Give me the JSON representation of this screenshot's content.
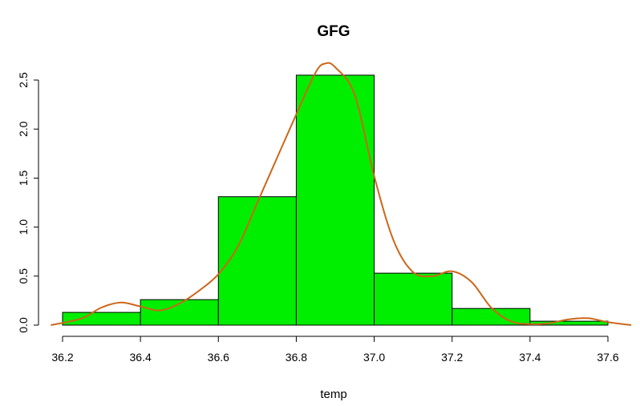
{
  "chart_data": {
    "type": "bar",
    "title": "GFG",
    "xlabel": "temp",
    "ylabel": "",
    "bins": [
      {
        "x0": 36.2,
        "x1": 36.4,
        "value": 0.13
      },
      {
        "x0": 36.4,
        "x1": 36.6,
        "value": 0.26
      },
      {
        "x0": 36.6,
        "x1": 36.8,
        "value": 1.31
      },
      {
        "x0": 36.8,
        "x1": 37.0,
        "value": 2.55
      },
      {
        "x0": 37.0,
        "x1": 37.2,
        "value": 0.53
      },
      {
        "x0": 37.2,
        "x1": 37.4,
        "value": 0.17
      },
      {
        "x0": 37.4,
        "x1": 37.6,
        "value": 0.04
      }
    ],
    "xticks": [
      "36.2",
      "36.4",
      "36.6",
      "36.8",
      "37.0",
      "37.2",
      "37.4",
      "37.6"
    ],
    "yticks": [
      "0.0",
      "0.5",
      "1.0",
      "1.5",
      "2.0",
      "2.5"
    ],
    "xlim": [
      36.2,
      37.6
    ],
    "ylim": [
      0,
      2.5
    ],
    "density_curve": {
      "x": [
        36.17,
        36.25,
        36.3,
        36.35,
        36.4,
        36.45,
        36.5,
        36.55,
        36.6,
        36.65,
        36.7,
        36.75,
        36.8,
        36.85,
        36.875,
        36.9,
        36.95,
        37.0,
        37.05,
        37.1,
        37.15,
        37.2,
        37.25,
        37.3,
        37.35,
        37.4,
        37.45,
        37.5,
        37.55,
        37.6,
        37.66
      ],
      "y": [
        0.0,
        0.07,
        0.18,
        0.23,
        0.19,
        0.15,
        0.22,
        0.35,
        0.52,
        0.8,
        1.25,
        1.7,
        2.15,
        2.58,
        2.67,
        2.63,
        2.35,
        1.52,
        0.86,
        0.54,
        0.5,
        0.55,
        0.44,
        0.18,
        0.04,
        0.01,
        0.02,
        0.06,
        0.07,
        0.03,
        0.0
      ]
    },
    "bar_color": "#00ee00",
    "curve_color": "#cc6619",
    "grid": false,
    "legend": "none"
  }
}
